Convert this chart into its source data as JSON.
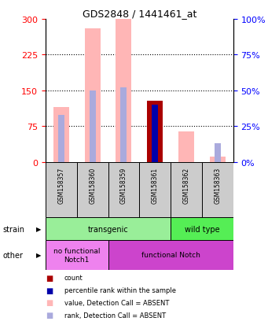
{
  "title": "GDS2848 / 1441461_at",
  "samples": [
    "GSM158357",
    "GSM158360",
    "GSM158359",
    "GSM158361",
    "GSM158362",
    "GSM158363"
  ],
  "value_absent": [
    115,
    280,
    300,
    0,
    65,
    12
  ],
  "rank_absent_pct": [
    33,
    50,
    52,
    0,
    0,
    13
  ],
  "count": [
    0,
    0,
    0,
    128,
    0,
    0
  ],
  "percentile_pct": [
    0,
    0,
    0,
    40,
    0,
    0
  ],
  "ylim_left": [
    0,
    300
  ],
  "ylim_right": [
    0,
    100
  ],
  "yticks_left": [
    0,
    75,
    150,
    225,
    300
  ],
  "yticks_right": [
    0,
    25,
    50,
    75,
    100
  ],
  "color_value_absent": "#FFB6B6",
  "color_rank_absent": "#AAAADD",
  "color_count": "#AA0000",
  "color_percentile": "#0000AA",
  "strain_labels": [
    {
      "label": "transgenic",
      "start": 0,
      "end": 4,
      "color": "#99EE99"
    },
    {
      "label": "wild type",
      "start": 4,
      "end": 6,
      "color": "#55EE55"
    }
  ],
  "other_labels": [
    {
      "label": "no functional\nNotch1",
      "start": 0,
      "end": 2,
      "color": "#EE82EE"
    },
    {
      "label": "functional Notch",
      "start": 2,
      "end": 6,
      "color": "#CC44CC"
    }
  ],
  "legend_items": [
    {
      "label": "count",
      "color": "#AA0000",
      "marker": "s"
    },
    {
      "label": "percentile rank within the sample",
      "color": "#0000AA",
      "marker": "s"
    },
    {
      "label": "value, Detection Call = ABSENT",
      "color": "#FFB6B6",
      "marker": "s"
    },
    {
      "label": "rank, Detection Call = ABSENT",
      "color": "#AAAADD",
      "marker": "s"
    }
  ]
}
